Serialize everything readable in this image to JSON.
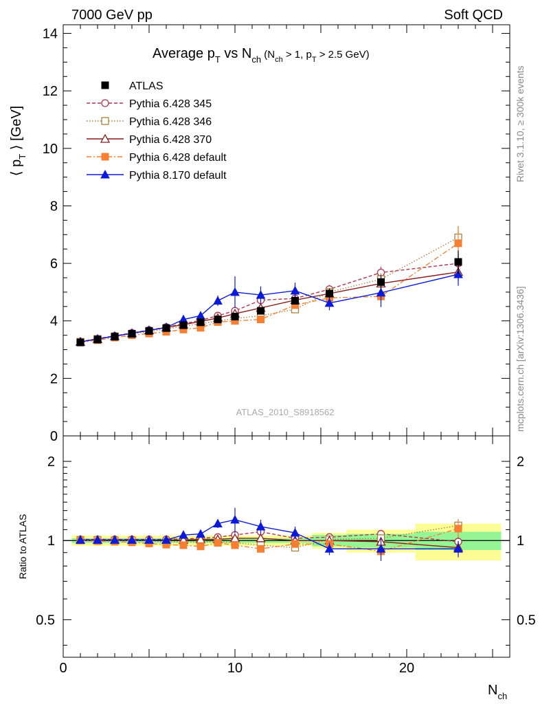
{
  "header": {
    "left": "7000 GeV pp",
    "right": "Soft QCD"
  },
  "side": {
    "rivet": "Rivet 3.1.10, ≥ 300k events",
    "mcplots": "mcplots.cern.ch [arXiv:1306.3436]"
  },
  "chart_data": [
    {
      "type": "line",
      "title_parts": {
        "main": "Average p",
        "main_sub": "T",
        "vs": " vs N",
        "vs_sub": "ch",
        "cuts_a": " (N",
        "cuts_a_sub": "ch",
        "cuts_b": " > 1, p",
        "cuts_b_sub": "T",
        "cuts_c": " > 2.5 GeV)"
      },
      "ylabel_parts": {
        "left": "⟨ p",
        "sub": "T",
        "right": " ⟩  [GeV]"
      },
      "watermark": "ATLAS_2010_S8918562",
      "xlim": [
        0,
        26
      ],
      "ylim": [
        0,
        14.3
      ],
      "yticks": [
        0,
        2,
        4,
        6,
        8,
        10,
        12,
        14
      ],
      "legend_position": "top-left",
      "x": [
        1,
        2,
        3,
        4,
        5,
        6,
        7,
        8,
        9,
        10,
        11.5,
        13.5,
        15.5,
        18.5,
        23
      ],
      "series": [
        {
          "name": "ATLAS",
          "color": "#000000",
          "marker": "square-filled",
          "dash": "none",
          "values": [
            3.25,
            3.35,
            3.45,
            3.55,
            3.65,
            3.75,
            3.85,
            3.95,
            4.05,
            4.15,
            4.35,
            4.7,
            4.95,
            5.35,
            6.05
          ],
          "errors": [
            0.03,
            0.03,
            0.03,
            0.04,
            0.04,
            0.05,
            0.05,
            0.06,
            0.07,
            0.08,
            0.1,
            0.13,
            0.17,
            0.25,
            0.4
          ]
        },
        {
          "name": "Pythia 6.428 345",
          "color": "#b2334c",
          "marker": "circle-open",
          "dash": "5,3",
          "values": [
            3.28,
            3.38,
            3.48,
            3.58,
            3.68,
            3.78,
            3.9,
            4.02,
            4.18,
            4.35,
            4.72,
            4.78,
            5.1,
            5.68,
            6.0
          ],
          "errors": [
            0.02,
            0.02,
            0.02,
            0.03,
            0.03,
            0.03,
            0.04,
            0.05,
            0.06,
            0.08,
            0.1,
            0.12,
            0.15,
            0.2,
            0.3
          ]
        },
        {
          "name": "Pythia 6.428 346",
          "color": "#a9813d",
          "marker": "square-open",
          "dash": "1.5,2.5",
          "values": [
            3.27,
            3.37,
            3.46,
            3.55,
            3.63,
            3.72,
            3.82,
            3.9,
            4.0,
            4.08,
            4.18,
            4.4,
            5.0,
            5.45,
            6.9
          ],
          "errors": [
            0.02,
            0.02,
            0.02,
            0.03,
            0.03,
            0.03,
            0.04,
            0.05,
            0.06,
            0.08,
            0.1,
            0.12,
            0.15,
            0.2,
            0.4
          ]
        },
        {
          "name": "Pythia 6.428 370",
          "color": "#8b1a1a",
          "marker": "triangle-open",
          "dash": "none",
          "values": [
            3.27,
            3.37,
            3.47,
            3.57,
            3.67,
            3.77,
            3.87,
            3.98,
            4.1,
            4.25,
            4.45,
            4.72,
            4.95,
            5.3,
            5.7
          ],
          "errors": [
            0.02,
            0.02,
            0.02,
            0.03,
            0.03,
            0.03,
            0.04,
            0.05,
            0.06,
            0.08,
            0.1,
            0.12,
            0.15,
            0.2,
            0.3
          ]
        },
        {
          "name": "Pythia 6.428 default",
          "color": "#f57f33",
          "marker": "square-filled",
          "dash": "7,3,2,3",
          "values": [
            3.25,
            3.33,
            3.42,
            3.5,
            3.56,
            3.62,
            3.7,
            3.76,
            3.96,
            4.0,
            4.05,
            4.55,
            4.8,
            4.85,
            6.7
          ],
          "errors": [
            0.02,
            0.02,
            0.02,
            0.03,
            0.03,
            0.03,
            0.04,
            0.05,
            0.06,
            0.08,
            0.1,
            0.12,
            0.15,
            0.2,
            0.5
          ]
        },
        {
          "name": "Pythia 8.170 default",
          "color": "#0a1ad8",
          "marker": "triangle-filled",
          "dash": "none",
          "values": [
            3.27,
            3.37,
            3.47,
            3.57,
            3.67,
            3.77,
            4.05,
            4.18,
            4.7,
            5.0,
            4.9,
            5.05,
            4.62,
            4.98,
            5.62
          ],
          "errors": [
            0.03,
            0.03,
            0.03,
            0.04,
            0.04,
            0.05,
            0.07,
            0.08,
            0.18,
            0.55,
            0.3,
            0.28,
            0.25,
            0.5,
            0.4
          ]
        }
      ]
    },
    {
      "type": "line",
      "ylabel": "Ratio to ATLAS",
      "xlabel_main": "N",
      "xlabel_sub": "ch",
      "xlim": [
        0,
        26
      ],
      "ylim": [
        0.36,
        2.5
      ],
      "log_y": true,
      "yticks": [
        0.5,
        1,
        2
      ],
      "ytick_labels": [
        "0.5",
        "1",
        "2"
      ],
      "xticks": [
        0,
        10,
        20
      ],
      "xtick_labels": [
        "0",
        "10",
        "20"
      ],
      "uncertainty_bands": [
        {
          "x_range": [
            0.5,
            14.5
          ],
          "inner": 0.02,
          "outer": 0.045
        },
        {
          "x_range": [
            14.5,
            16.5
          ],
          "inner": 0.05,
          "outer": 0.07
        },
        {
          "x_range": [
            16.5,
            20.5
          ],
          "inner": 0.06,
          "outer": 0.1
        },
        {
          "x_range": [
            20.5,
            25.5
          ],
          "inner": 0.08,
          "outer": 0.16
        }
      ],
      "band_colors": {
        "inner": "#95f595",
        "outer": "#fdfd95"
      },
      "series": [
        {
          "name": "Pythia 6.428 345",
          "values": [
            1.01,
            1.01,
            1.01,
            1.01,
            1.01,
            1.01,
            1.015,
            1.02,
            1.03,
            1.05,
            1.08,
            1.02,
            1.03,
            1.06,
            0.99
          ]
        },
        {
          "name": "Pythia 6.428 346",
          "values": [
            1.005,
            1.005,
            1.0,
            1.0,
            0.995,
            0.99,
            0.99,
            0.99,
            0.99,
            0.98,
            0.96,
            0.94,
            1.01,
            1.02,
            1.14
          ]
        },
        {
          "name": "Pythia 6.428 370",
          "values": [
            1.005,
            1.005,
            1.005,
            1.005,
            1.005,
            1.005,
            1.005,
            1.01,
            1.01,
            1.02,
            1.02,
            1.0,
            1.0,
            0.99,
            0.94
          ]
        },
        {
          "name": "Pythia 6.428 default",
          "values": [
            1.0,
            0.995,
            0.99,
            0.985,
            0.975,
            0.965,
            0.96,
            0.95,
            0.98,
            0.96,
            0.93,
            0.97,
            0.97,
            0.91,
            1.11
          ]
        },
        {
          "name": "Pythia 8.170 default",
          "values": [
            1.005,
            1.005,
            1.005,
            1.005,
            1.005,
            1.005,
            1.05,
            1.06,
            1.16,
            1.2,
            1.13,
            1.07,
            0.93,
            0.93,
            0.93
          ]
        }
      ]
    }
  ]
}
